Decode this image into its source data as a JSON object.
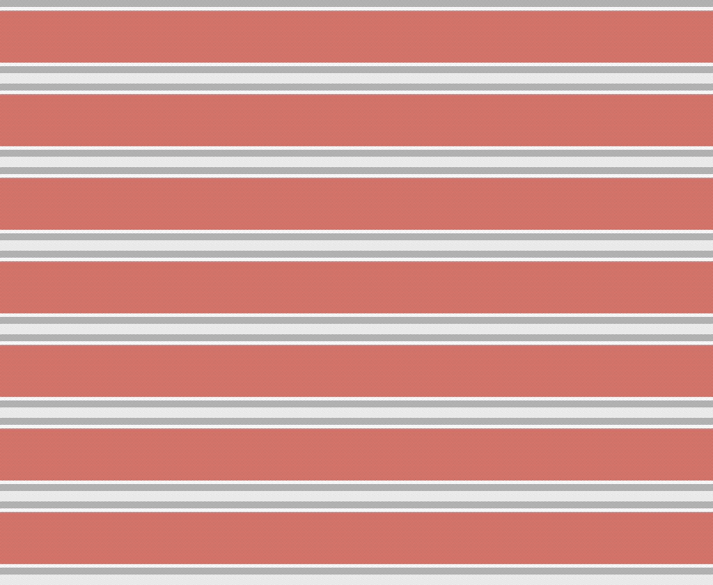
{
  "pattern": {
    "type": "horizontal-stripes",
    "colors": {
      "red": "#d8261c",
      "gray": "#7a7a7a",
      "light": "#dcdcdc",
      "white": "#f6f6f6"
    }
  }
}
